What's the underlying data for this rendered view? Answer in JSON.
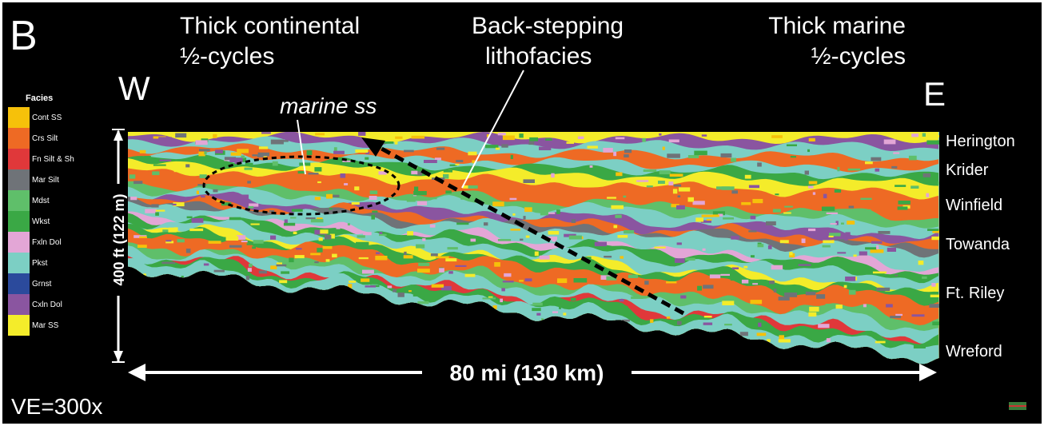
{
  "panel_label": "B",
  "annotations": {
    "continental": [
      "Thick continental",
      "½-cycles"
    ],
    "backstepping": [
      "Back-stepping",
      "lithofacies"
    ],
    "marine": [
      "Thick marine",
      "½-cycles"
    ],
    "marine_ss": "marine ss"
  },
  "directions": {
    "west": "W",
    "east": "E"
  },
  "legend": {
    "title": "Facies",
    "items": [
      {
        "label": "Cont SS",
        "color": "#f6c10a"
      },
      {
        "label": "Crs Silt",
        "color": "#ee6a24"
      },
      {
        "label": "Fn Silt & Sh",
        "color": "#e0383a"
      },
      {
        "label": "Mar Silt",
        "color": "#6f7378"
      },
      {
        "label": "Mdst",
        "color": "#5fbf6a"
      },
      {
        "label": "Wkst",
        "color": "#3aa845"
      },
      {
        "label": "Fxln Dol",
        "color": "#e3a6d6"
      },
      {
        "label": "Pkst",
        "color": "#7ccfc4"
      },
      {
        "label": "Grnst",
        "color": "#2b4a9c"
      },
      {
        "label": "Cxln Dol",
        "color": "#8a55a0"
      },
      {
        "label": "Mar SS",
        "color": "#f4ec2a"
      }
    ]
  },
  "formations": [
    "Herington",
    "Krider",
    "Winfield",
    "Towanda",
    "Ft. Riley",
    "Wreford"
  ],
  "vertical_scale": "400 ft (122 m)",
  "horizontal_scale": "80 mi (130 km)",
  "vertical_exaggeration": "VE=300x"
}
